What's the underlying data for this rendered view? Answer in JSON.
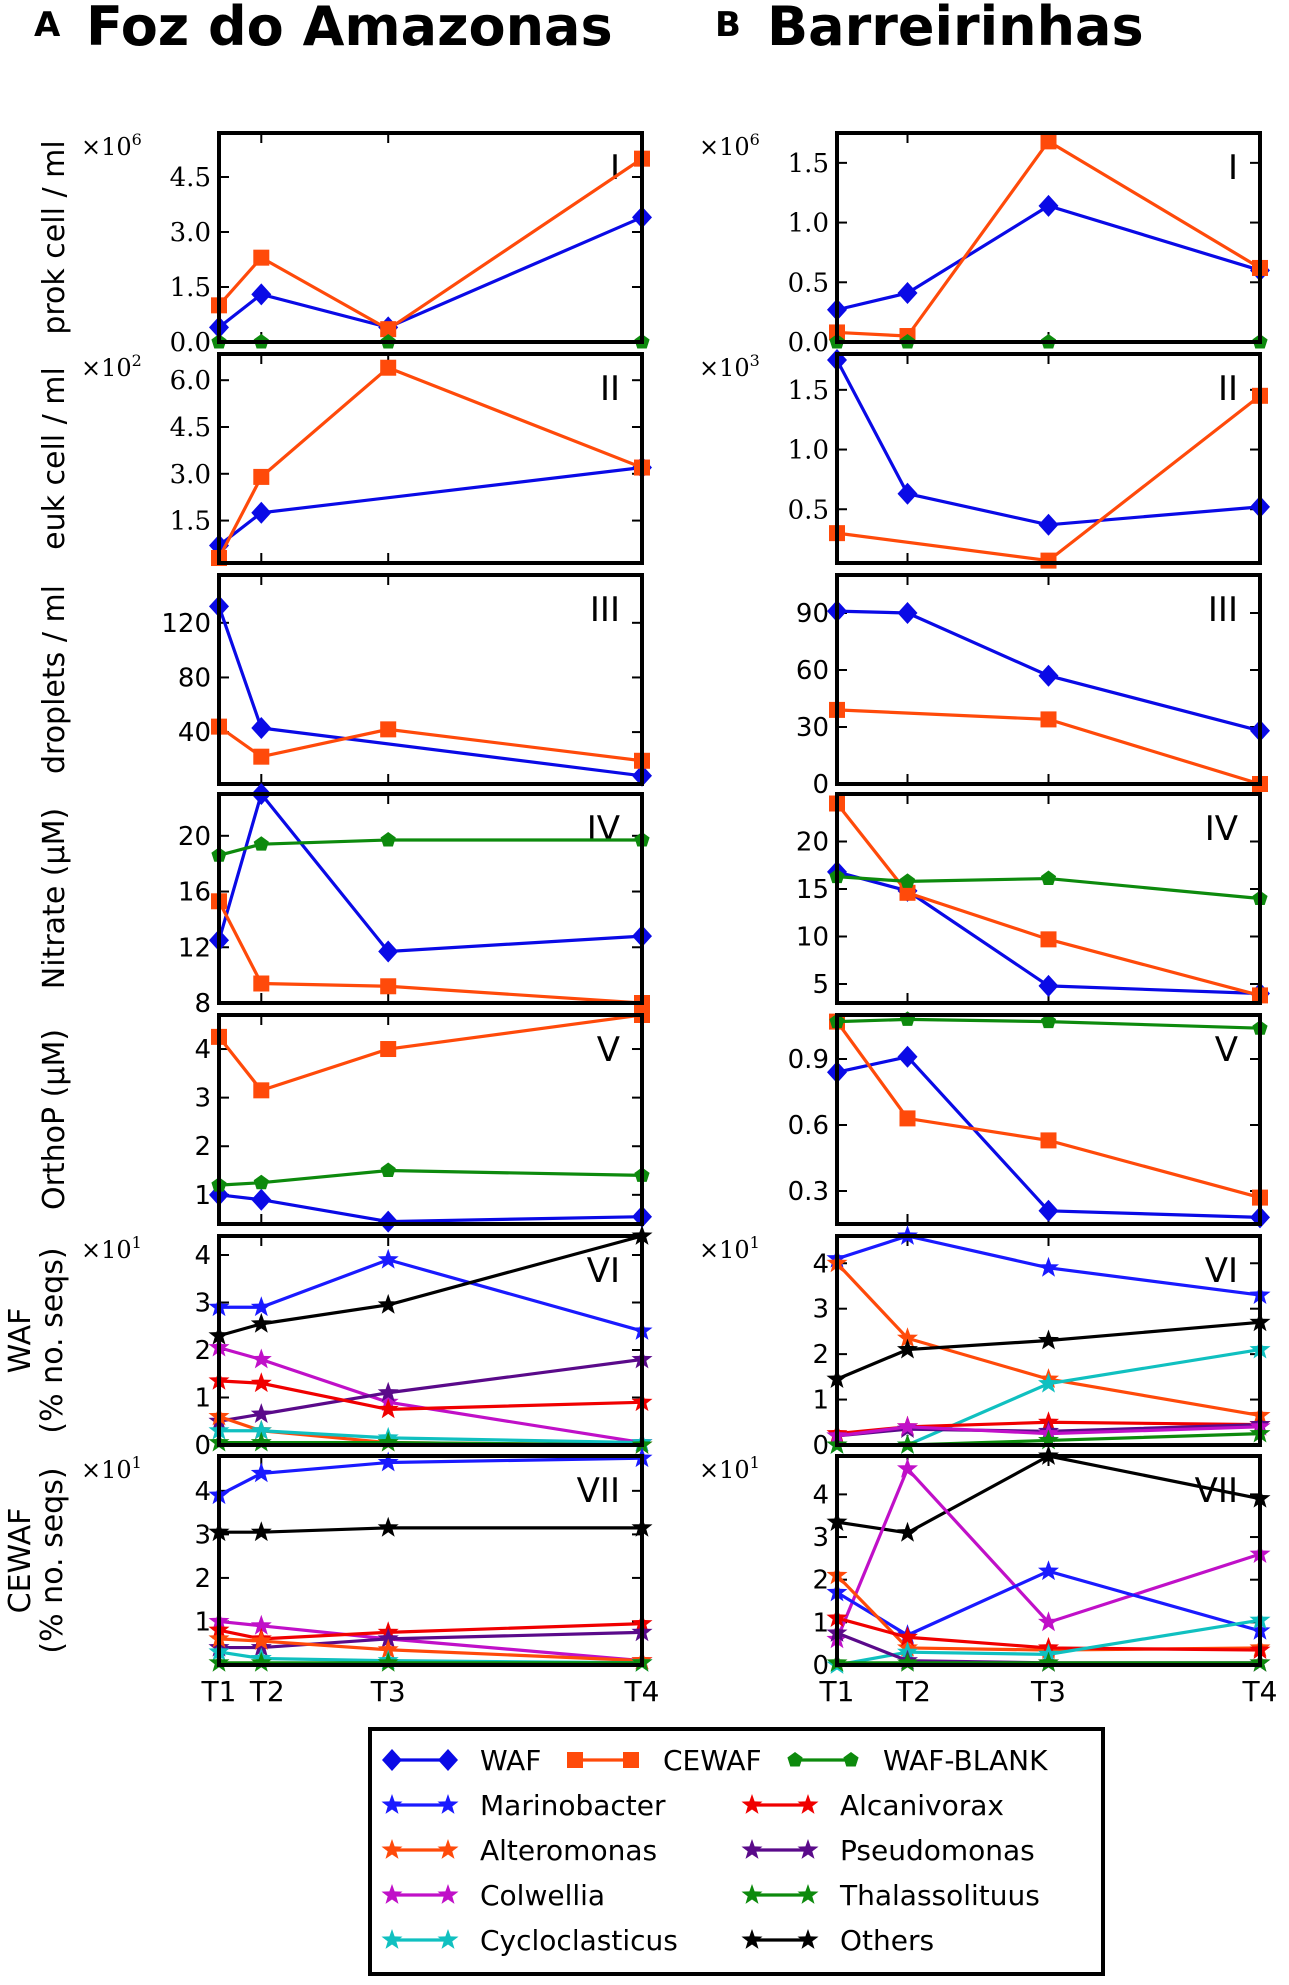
{
  "chart_data": {
    "type": "line",
    "x_tick_labels": [
      "T1",
      "T2",
      "T3",
      "T4"
    ],
    "row_labels": [
      [
        "prok cell / ml"
      ],
      [
        "euk cell / ml"
      ],
      [
        "droplets / ml"
      ],
      [
        "Nitrate (µM)"
      ],
      [
        "OrthoP (µM)"
      ],
      [
        "WAF",
        "(% no. seqs)"
      ],
      [
        "CEWAF",
        "(% no. seqs)"
      ]
    ],
    "styles": {
      "WAF": {
        "color": "#0a0ae6",
        "marker": "diamond"
      },
      "CEWAF": {
        "color": "#ff4a0a",
        "marker": "square"
      },
      "WAF-BLANK": {
        "color": "#0d8a0d",
        "marker": "pentagon"
      },
      "Marinobacter": {
        "color": "#1a1aff",
        "marker": "star"
      },
      "Alcanivorax": {
        "color": "#f00000",
        "marker": "star"
      },
      "Alteromonas": {
        "color": "#ff4a0a",
        "marker": "star"
      },
      "Pseudomonas": {
        "color": "#5a0a8a",
        "marker": "star"
      },
      "Colwellia": {
        "color": "#c010c8",
        "marker": "star"
      },
      "Thalassolituus": {
        "color": "#0d8a0d",
        "marker": "star"
      },
      "Cycloclasticus": {
        "color": "#10c0c0",
        "marker": "star"
      },
      "Others": {
        "color": "#000000",
        "marker": "star"
      }
    },
    "legend": {
      "placement": "bottom-center",
      "rows": [
        [
          "WAF",
          "CEWAF",
          "WAF-BLANK"
        ],
        [
          "Marinobacter",
          "Alcanivorax"
        ],
        [
          "Alteromonas",
          "Pseudomonas"
        ],
        [
          "Colwellia",
          "Thalassolituus"
        ],
        [
          "Cycloclasticus",
          "Others"
        ]
      ]
    },
    "columns": [
      {
        "letter": "A",
        "title": "Foz do Amazonas",
        "x": [
          0,
          1,
          4,
          10
        ],
        "panels": [
          {
            "id": "I",
            "multiplier": "6",
            "ylim": [
              0,
              5.7
            ],
            "yticks": [
              0,
              1.5,
              3,
              4.5
            ],
            "tick_fmt": 1,
            "series": [
              {
                "name": "WAF",
                "values": [
                  0.4,
                  1.3,
                  0.4,
                  3.4
                ]
              },
              {
                "name": "CEWAF",
                "values": [
                  1.0,
                  2.3,
                  0.35,
                  5.0
                ]
              },
              {
                "name": "WAF-BLANK",
                "values": [
                  0,
                  0,
                  0,
                  0
                ]
              }
            ]
          },
          {
            "id": "II",
            "multiplier": "2",
            "ylim": [
              0.14,
              6.84
            ],
            "yticks": [
              1.5,
              3,
              4.5,
              6
            ],
            "tick_fmt": 1,
            "series": [
              {
                "name": "WAF",
                "values": [
                  0.7,
                  1.75,
                  null,
                  3.2
                ]
              },
              {
                "name": "CEWAF",
                "values": [
                  0.3,
                  2.9,
                  6.4,
                  3.2
                ]
              }
            ]
          },
          {
            "id": "III",
            "ylim": [
              2,
              155
            ],
            "yticks": [
              40,
              80,
              120
            ],
            "tick_fmt": 0,
            "series": [
              {
                "name": "WAF",
                "values": [
                  132,
                  43,
                  null,
                  8
                ]
              },
              {
                "name": "CEWAF",
                "values": [
                  44,
                  22,
                  42,
                  19
                ]
              }
            ]
          },
          {
            "id": "IV",
            "ylim": [
              8,
              23
            ],
            "yticks": [
              8,
              12,
              16,
              20
            ],
            "tick_fmt": 0,
            "series": [
              {
                "name": "WAF",
                "values": [
                  12.5,
                  23,
                  11.7,
                  12.8
                ]
              },
              {
                "name": "CEWAF",
                "values": [
                  15.3,
                  9.4,
                  9.2,
                  8.0
                ]
              },
              {
                "name": "WAF-BLANK",
                "values": [
                  18.6,
                  19.4,
                  19.7,
                  19.7
                ]
              }
            ]
          },
          {
            "id": "V",
            "ylim": [
              0.4,
              4.7
            ],
            "yticks": [
              1,
              2,
              3,
              4
            ],
            "tick_fmt": 0,
            "series": [
              {
                "name": "WAF",
                "values": [
                  1.0,
                  0.9,
                  0.45,
                  0.55
                ]
              },
              {
                "name": "CEWAF",
                "values": [
                  4.25,
                  3.15,
                  4.0,
                  4.7
                ]
              },
              {
                "name": "WAF-BLANK",
                "values": [
                  1.2,
                  1.25,
                  1.5,
                  1.4
                ]
              }
            ]
          },
          {
            "id": "VI",
            "multiplier": "1",
            "ylim": [
              0,
              4.4
            ],
            "yticks": [
              0,
              1,
              2,
              3,
              4
            ],
            "tick_fmt": 0,
            "series": [
              {
                "name": "Marinobacter",
                "values": [
                  2.9,
                  2.9,
                  3.9,
                  2.4
                ]
              },
              {
                "name": "Others",
                "values": [
                  2.3,
                  2.55,
                  2.95,
                  4.4
                ]
              },
              {
                "name": "Colwellia",
                "values": [
                  2.05,
                  1.8,
                  0.9,
                  0.05
                ]
              },
              {
                "name": "Pseudomonas",
                "values": [
                  0.5,
                  0.65,
                  1.1,
                  1.8
                ]
              },
              {
                "name": "Alcanivorax",
                "values": [
                  1.35,
                  1.3,
                  0.75,
                  0.9
                ]
              },
              {
                "name": "Alteromonas",
                "values": [
                  0.6,
                  0.3,
                  0.05,
                  0
                ]
              },
              {
                "name": "Cycloclasticus",
                "values": [
                  0.3,
                  0.3,
                  0.15,
                  0.05
                ]
              },
              {
                "name": "Thalassolituus",
                "values": [
                  0.05,
                  0.05,
                  0.05,
                  0
                ]
              }
            ]
          },
          {
            "id": "VII",
            "multiplier": "1",
            "ylim": [
              0,
              4.8
            ],
            "yticks": [
              1,
              2,
              3,
              4
            ],
            "tick_fmt": 0,
            "series": [
              {
                "name": "Marinobacter",
                "values": [
                  3.9,
                  4.4,
                  4.65,
                  4.75
                ]
              },
              {
                "name": "Others",
                "values": [
                  3.05,
                  3.05,
                  3.15,
                  3.15
                ]
              },
              {
                "name": "Colwellia",
                "values": [
                  1.0,
                  0.9,
                  0.6,
                  0.1
                ]
              },
              {
                "name": "Alcanivorax",
                "values": [
                  0.8,
                  0.6,
                  0.75,
                  0.95
                ]
              },
              {
                "name": "Pseudomonas",
                "values": [
                  0.4,
                  0.4,
                  0.6,
                  0.75
                ]
              },
              {
                "name": "Alteromonas",
                "values": [
                  0.6,
                  0.55,
                  0.35,
                  0.1
                ]
              },
              {
                "name": "Cycloclasticus",
                "values": [
                  0.3,
                  0.15,
                  0.1,
                  0.05
                ]
              },
              {
                "name": "Thalassolituus",
                "values": [
                  0.05,
                  0.05,
                  0.05,
                  0.05
                ]
              }
            ]
          }
        ]
      },
      {
        "letter": "B",
        "title": "Barreirinhas",
        "x": [
          0,
          1,
          3,
          6
        ],
        "panels": [
          {
            "id": "I",
            "multiplier": "6",
            "ylim": [
              0,
              1.75
            ],
            "yticks": [
              0,
              0.5,
              1,
              1.5
            ],
            "tick_fmt": 1,
            "series": [
              {
                "name": "WAF",
                "values": [
                  0.27,
                  0.41,
                  1.14,
                  0.6
                ]
              },
              {
                "name": "CEWAF",
                "values": [
                  0.08,
                  0.05,
                  1.68,
                  0.62
                ]
              },
              {
                "name": "WAF-BLANK",
                "values": [
                  0,
                  0,
                  0,
                  0
                ]
              }
            ]
          },
          {
            "id": "II",
            "multiplier": "3",
            "ylim": [
              0.05,
              1.8
            ],
            "yticks": [
              0.5,
              1,
              1.5
            ],
            "tick_fmt": 1,
            "series": [
              {
                "name": "WAF",
                "values": [
                  1.75,
                  0.63,
                  0.37,
                  0.52
                ]
              },
              {
                "name": "CEWAF",
                "values": [
                  0.3,
                  null,
                  0.07,
                  1.45
                ]
              }
            ]
          },
          {
            "id": "III",
            "ylim": [
              0,
              110
            ],
            "yticks": [
              0,
              30,
              60,
              90
            ],
            "tick_fmt": 0,
            "series": [
              {
                "name": "WAF",
                "values": [
                  91,
                  90,
                  57,
                  28
                ]
              },
              {
                "name": "CEWAF",
                "values": [
                  39,
                  null,
                  34,
                  0
                ]
              }
            ]
          },
          {
            "id": "IV",
            "ylim": [
              3,
              25
            ],
            "yticks": [
              5,
              10,
              15,
              20
            ],
            "tick_fmt": 0,
            "series": [
              {
                "name": "WAF",
                "values": [
                  16.8,
                  14.8,
                  4.8,
                  4.0
                ]
              },
              {
                "name": "CEWAF",
                "values": [
                  24,
                  14.6,
                  9.7,
                  3.8
                ]
              },
              {
                "name": "WAF-BLANK",
                "values": [
                  16.3,
                  15.8,
                  16.1,
                  14.0
                ]
              }
            ]
          },
          {
            "id": "V",
            "ylim": [
              0.15,
              1.1
            ],
            "yticks": [
              0.3,
              0.6,
              0.9
            ],
            "tick_fmt": 1,
            "series": [
              {
                "name": "WAF",
                "values": [
                  0.84,
                  0.91,
                  0.21,
                  0.18
                ]
              },
              {
                "name": "CEWAF",
                "values": [
                  1.07,
                  0.63,
                  0.53,
                  0.27
                ]
              },
              {
                "name": "WAF-BLANK",
                "values": [
                  1.07,
                  1.08,
                  1.07,
                  1.04
                ]
              }
            ]
          },
          {
            "id": "VI",
            "multiplier": "1",
            "ylim": [
              0,
              4.6
            ],
            "yticks": [
              0,
              1,
              2,
              3,
              4
            ],
            "tick_fmt": 0,
            "series": [
              {
                "name": "Marinobacter",
                "values": [
                  4.1,
                  4.6,
                  3.9,
                  3.3
                ]
              },
              {
                "name": "Alteromonas",
                "values": [
                  4.0,
                  2.35,
                  1.45,
                  0.65
                ]
              },
              {
                "name": "Others",
                "values": [
                  1.45,
                  2.1,
                  2.3,
                  2.7
                ]
              },
              {
                "name": "Cycloclasticus",
                "values": [
                  0,
                  0,
                  1.35,
                  2.1
                ]
              },
              {
                "name": "Alcanivorax",
                "values": [
                  0.25,
                  0.4,
                  0.5,
                  0.45
                ]
              },
              {
                "name": "Pseudomonas",
                "values": [
                  0.2,
                  0.35,
                  0.3,
                  0.45
                ]
              },
              {
                "name": "Colwellia",
                "values": [
                  0.2,
                  0.4,
                  0.25,
                  0.4
                ]
              },
              {
                "name": "Thalassolituus",
                "values": [
                  0,
                  0,
                  0.1,
                  0.25
                ]
              }
            ]
          },
          {
            "id": "VII",
            "multiplier": "1",
            "ylim": [
              0,
              4.9
            ],
            "yticks": [
              0,
              1,
              2,
              3,
              4
            ],
            "tick_fmt": 0,
            "series": [
              {
                "name": "Others",
                "values": [
                  3.35,
                  3.1,
                  4.9,
                  3.9
                ]
              },
              {
                "name": "Colwellia",
                "values": [
                  0.6,
                  4.6,
                  1.0,
                  2.6
                ]
              },
              {
                "name": "Marinobacter",
                "values": [
                  1.7,
                  0.7,
                  2.2,
                  0.8
                ]
              },
              {
                "name": "Alteromonas",
                "values": [
                  2.1,
                  0.4,
                  0.35,
                  0.4
                ]
              },
              {
                "name": "Alcanivorax",
                "values": [
                  1.1,
                  0.65,
                  0.4,
                  0.35
                ]
              },
              {
                "name": "Cycloclasticus",
                "values": [
                  0,
                  0.3,
                  0.25,
                  1.05
                ]
              },
              {
                "name": "Pseudomonas",
                "values": [
                  0.75,
                  0.1,
                  0.05,
                  0.05
                ]
              },
              {
                "name": "Thalassolituus",
                "values": [
                  0.05,
                  0.05,
                  0.05,
                  0.05
                ]
              }
            ]
          }
        ]
      }
    ]
  }
}
